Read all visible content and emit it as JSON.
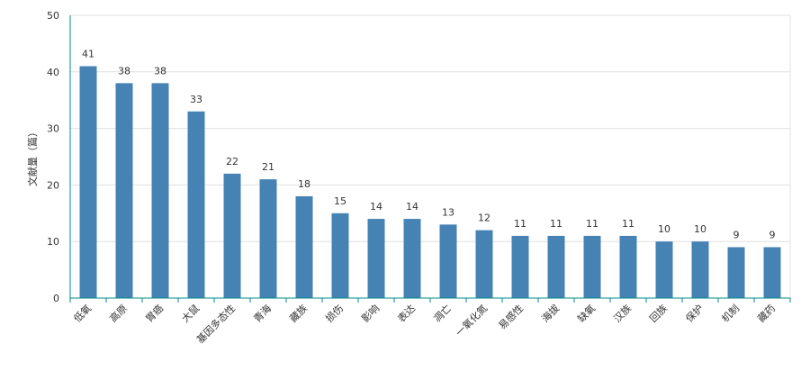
{
  "chart_data": {
    "type": "bar",
    "title": "",
    "xlabel": "",
    "ylabel": "文献量（篇）",
    "ylim": [
      0,
      50
    ],
    "yticks": [
      0,
      10,
      20,
      30,
      40,
      50
    ],
    "grid": true,
    "categories": [
      "低氧",
      "高原",
      "胃癌",
      "大鼠",
      "基因多态性",
      "青海",
      "藏族",
      "损伤",
      "影响",
      "表达",
      "凋亡",
      "一氧化氮",
      "易感性",
      "海拔",
      "缺氧",
      "汉族",
      "回族",
      "保护",
      "机制",
      "藏药"
    ],
    "values": [
      41,
      38,
      38,
      33,
      22,
      21,
      18,
      15,
      14,
      14,
      13,
      12,
      11,
      11,
      11,
      11,
      10,
      10,
      9,
      9
    ],
    "colors": {
      "bar": "#4682b4",
      "axis": "#008b8b",
      "grid": "#e0e0e0",
      "text": "#333333"
    }
  }
}
